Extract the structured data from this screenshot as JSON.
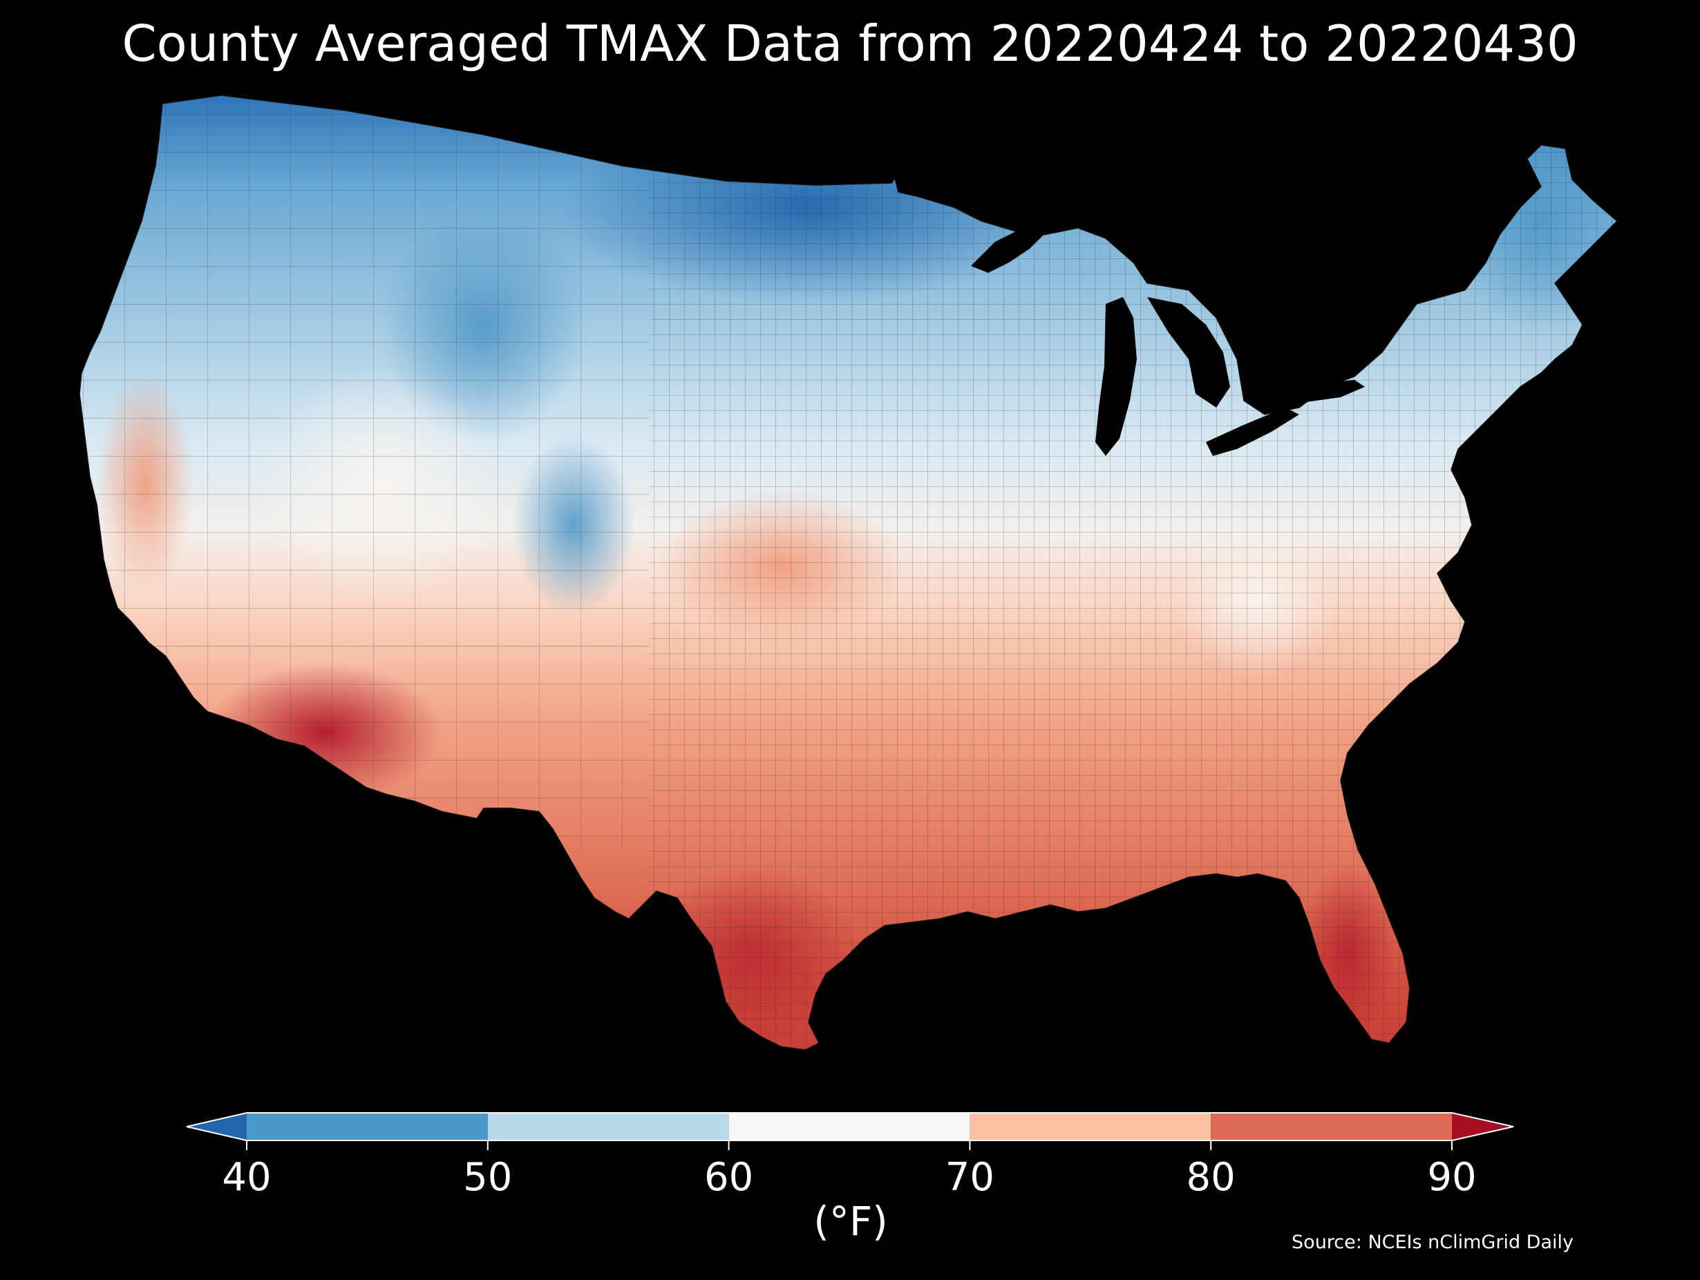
{
  "title": "County Averaged TMAX Data from 20220424 to 20220430",
  "source": "Source: NCEIs nClimGrid Daily",
  "colorbar": {
    "label": "(°F)",
    "ticks": [
      "40",
      "50",
      "60",
      "70",
      "80",
      "90"
    ],
    "bins": [
      {
        "from": 40,
        "to": 50,
        "color": "#4a98c9"
      },
      {
        "from": 50,
        "to": 60,
        "color": "#b8d8ea"
      },
      {
        "from": 60,
        "to": 70,
        "color": "#f6f6f6"
      },
      {
        "from": 70,
        "to": 80,
        "color": "#f9c0a3"
      },
      {
        "from": 80,
        "to": 90,
        "color": "#de6b55"
      }
    ],
    "under_color": "#2166ac",
    "over_color": "#a50f24",
    "extend": "both"
  },
  "map": {
    "region": "Contiguous United States",
    "unit_level": "county",
    "variable": "TMAX",
    "background_color": "#000000",
    "boundary_color": "#1a1a1a"
  }
}
